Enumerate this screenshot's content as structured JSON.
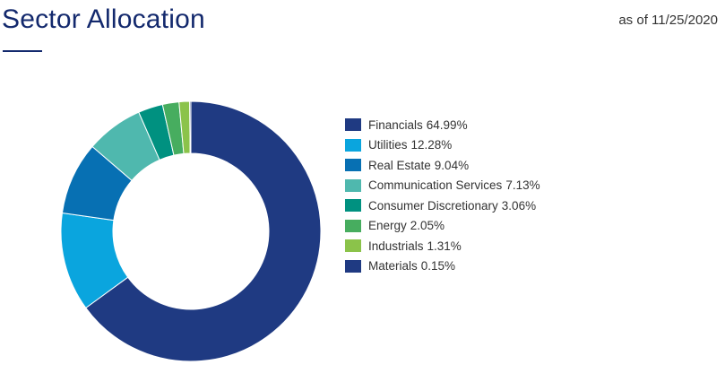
{
  "header": {
    "title": "Sector Allocation",
    "as_of": "as of 11/25/2020"
  },
  "chart_data": {
    "type": "pie",
    "variant": "donut",
    "categories": [
      "Financials",
      "Utilities",
      "Real Estate",
      "Communication Services",
      "Consumer Discretionary",
      "Energy",
      "Industrials",
      "Materials"
    ],
    "values": [
      64.99,
      12.28,
      9.04,
      7.13,
      3.06,
      2.05,
      1.31,
      0.15
    ],
    "value_labels": [
      "64.99%",
      "12.28%",
      "9.04%",
      "7.13%",
      "3.06%",
      "2.05%",
      "1.31%",
      "0.15%"
    ],
    "unit": "%",
    "colors": [
      "#1f3a82",
      "#0aa5de",
      "#0770b3",
      "#4fb8ae",
      "#009180",
      "#47ad5f",
      "#8bc34a",
      "#1f3a82"
    ],
    "legend_position": "right",
    "start_angle": "top",
    "direction": "clockwise"
  }
}
